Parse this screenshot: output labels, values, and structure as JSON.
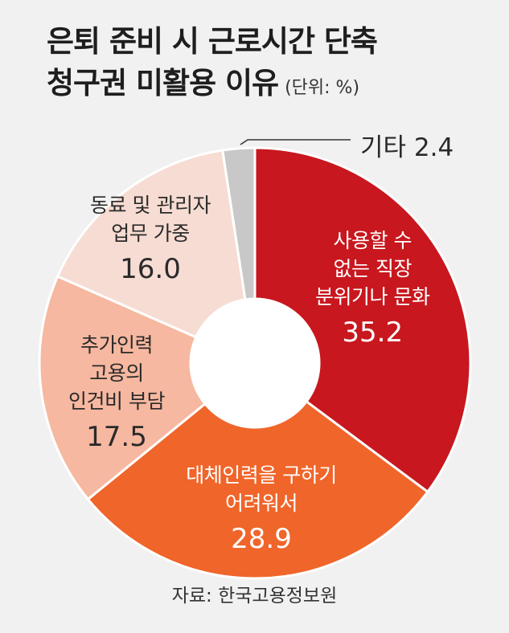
{
  "title": {
    "line1": "은퇴 준비 시 근로시간 단축",
    "line2": "청구권 미활용 이유",
    "unit": "(단위: %)"
  },
  "chart_data": {
    "type": "pie",
    "title": "은퇴 준비 시 근로시간 단축 청구권 미활용 이유",
    "unit": "%",
    "slices": [
      {
        "label": "사용할 수 없는 직장 분위기나 문화",
        "lines": [
          "사용할 수",
          "없는 직장",
          "분위기나 문화"
        ],
        "value": 35.2,
        "color": "#c8171e"
      },
      {
        "label": "대체인력을 구하기 어려워서",
        "lines": [
          "대체인력을 구하기",
          "어려워서"
        ],
        "value": 28.9,
        "color": "#f0652a"
      },
      {
        "label": "추가인력 고용의 인건비 부담",
        "lines": [
          "추가인력",
          "고용의",
          "인건비 부담"
        ],
        "value": 17.5,
        "color": "#f6b8a0"
      },
      {
        "label": "동료 및 관리자 업무 가중",
        "lines": [
          "동료 및 관리자",
          "업무 가중"
        ],
        "value": 16.0,
        "color": "#f6dcd2"
      },
      {
        "label": "기타",
        "lines": [
          "기타"
        ],
        "value": 2.4,
        "color": "#c8c8c8"
      }
    ]
  },
  "value_text": [
    "35.2",
    "28.9",
    "17.5",
    "16.0",
    "2.4"
  ],
  "source": "자료: 한국고용정보원"
}
